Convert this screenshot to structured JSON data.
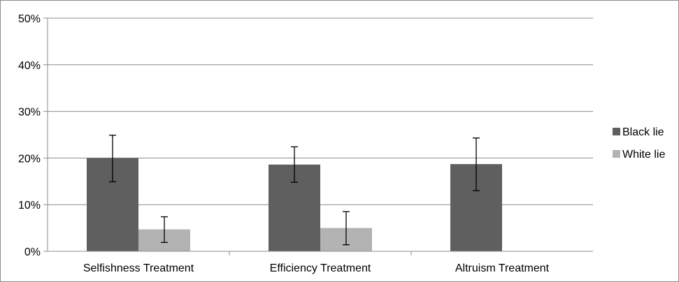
{
  "chart_data": {
    "type": "bar",
    "title": "",
    "xlabel": "",
    "ylabel": "",
    "ylim": [
      0,
      50
    ],
    "y_ticks": [
      "0%",
      "10%",
      "20%",
      "30%",
      "40%",
      "50%"
    ],
    "y_tick_values": [
      0,
      10,
      20,
      30,
      40,
      50
    ],
    "grid": true,
    "legend_position": "right",
    "categories": [
      "Selfishness Treatment",
      "Efficiency Treatment",
      "Altruism Treatment"
    ],
    "series": [
      {
        "name": "Black lie",
        "color": "#5f5f5f",
        "values": [
          20.0,
          18.6,
          18.7
        ],
        "error_low": [
          14.9,
          14.8,
          13.0
        ],
        "error_high": [
          24.9,
          22.4,
          24.3
        ]
      },
      {
        "name": "White lie",
        "color": "#b3b3b3",
        "values": [
          4.7,
          5.0,
          null
        ],
        "error_low": [
          1.9,
          1.4,
          null
        ],
        "error_high": [
          7.4,
          8.5,
          null
        ]
      }
    ]
  }
}
